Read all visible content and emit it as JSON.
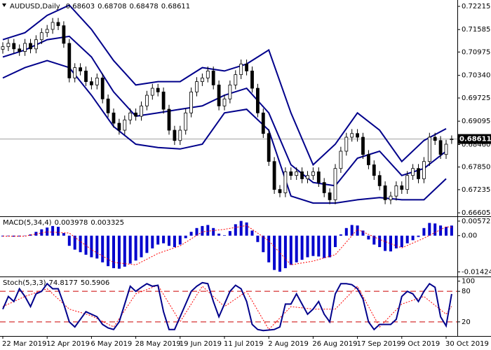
{
  "chart_data": [
    {
      "type": "candlestick",
      "title": "AUDUSD,Daily",
      "header_values": [
        0.68603,
        0.68708,
        0.68478,
        0.68611
      ],
      "open": [
        0.7105,
        0.7112,
        0.7121,
        0.7106,
        0.7099,
        0.7121,
        0.7106,
        0.7131,
        0.715,
        0.7159,
        0.7178,
        0.7169,
        0.7121,
        0.7027,
        0.7055,
        0.7046,
        0.7017,
        0.7008,
        0.7027,
        0.697,
        0.6932,
        0.6904,
        0.6885,
        0.6913,
        0.6932,
        0.6923,
        0.6951,
        0.698,
        0.6999,
        0.6989,
        0.6942,
        0.6885,
        0.6857,
        0.6885,
        0.6932,
        0.6989,
        0.7017,
        0.7027,
        0.7046,
        0.7008,
        0.6951,
        0.697,
        0.7008,
        0.7036,
        0.7065,
        0.7046,
        0.6999,
        0.6932,
        0.6876,
        0.68,
        0.6724,
        0.6715,
        0.6772,
        0.6762,
        0.6772,
        0.6753,
        0.6762,
        0.6772,
        0.6743,
        0.6715,
        0.6696,
        0.6781,
        0.6828,
        0.6866,
        0.6876,
        0.6866,
        0.6819,
        0.6791,
        0.6762,
        0.6734,
        0.6696,
        0.6706,
        0.6734,
        0.6724,
        0.6762,
        0.6781,
        0.6753,
        0.68,
        0.6866,
        0.6857,
        0.6819,
        0.68603
      ],
      "high": [
        0.7124,
        0.7133,
        0.7133,
        0.7118,
        0.7133,
        0.7133,
        0.7143,
        0.7162,
        0.7171,
        0.719,
        0.719,
        0.7181,
        0.7133,
        0.7067,
        0.7067,
        0.7058,
        0.7029,
        0.7039,
        0.7039,
        0.6982,
        0.6944,
        0.6916,
        0.6925,
        0.6944,
        0.6944,
        0.6963,
        0.6992,
        0.7011,
        0.7011,
        0.7001,
        0.6954,
        0.6897,
        0.6897,
        0.6944,
        0.7001,
        0.7029,
        0.7039,
        0.7058,
        0.7058,
        0.702,
        0.6982,
        0.702,
        0.7048,
        0.7077,
        0.7077,
        0.7058,
        0.7011,
        0.6944,
        0.6888,
        0.6812,
        0.6736,
        0.6784,
        0.6784,
        0.6784,
        0.6784,
        0.6774,
        0.6784,
        0.6784,
        0.6755,
        0.6727,
        0.6793,
        0.684,
        0.6878,
        0.6888,
        0.6888,
        0.6878,
        0.6831,
        0.6803,
        0.6774,
        0.6746,
        0.6718,
        0.6746,
        0.6746,
        0.6774,
        0.6793,
        0.6793,
        0.6812,
        0.6878,
        0.6878,
        0.6869,
        0.6859,
        0.68708
      ],
      "low": [
        0.7093,
        0.71,
        0.7094,
        0.7087,
        0.7087,
        0.7094,
        0.7094,
        0.7119,
        0.7138,
        0.7147,
        0.7157,
        0.7109,
        0.7015,
        0.7015,
        0.7034,
        0.7005,
        0.6996,
        0.6996,
        0.6958,
        0.692,
        0.6892,
        0.6873,
        0.6873,
        0.6901,
        0.6911,
        0.6911,
        0.6939,
        0.6968,
        0.6977,
        0.693,
        0.6873,
        0.6845,
        0.6845,
        0.6873,
        0.692,
        0.6977,
        0.7005,
        0.7015,
        0.6996,
        0.6939,
        0.6939,
        0.6958,
        0.6996,
        0.7024,
        0.7034,
        0.6987,
        0.692,
        0.6864,
        0.6788,
        0.6712,
        0.6703,
        0.6703,
        0.675,
        0.675,
        0.6741,
        0.6741,
        0.675,
        0.6731,
        0.6703,
        0.6684,
        0.6684,
        0.6769,
        0.6816,
        0.6854,
        0.6854,
        0.6807,
        0.6779,
        0.675,
        0.6722,
        0.6684,
        0.6684,
        0.6694,
        0.6712,
        0.6712,
        0.675,
        0.6741,
        0.6741,
        0.6788,
        0.6845,
        0.6807,
        0.6807,
        0.68478
      ],
      "close": [
        0.7112,
        0.7121,
        0.7106,
        0.7099,
        0.7121,
        0.7106,
        0.7131,
        0.715,
        0.7159,
        0.7178,
        0.7169,
        0.7121,
        0.7027,
        0.7055,
        0.7046,
        0.7017,
        0.7008,
        0.7027,
        0.697,
        0.6932,
        0.6904,
        0.6885,
        0.6913,
        0.6932,
        0.6923,
        0.6951,
        0.698,
        0.6999,
        0.6989,
        0.6942,
        0.6885,
        0.6857,
        0.6885,
        0.6932,
        0.6989,
        0.7017,
        0.7027,
        0.7046,
        0.7008,
        0.6951,
        0.697,
        0.7008,
        0.7036,
        0.7065,
        0.7046,
        0.6999,
        0.6932,
        0.6876,
        0.68,
        0.6724,
        0.6715,
        0.6772,
        0.6762,
        0.6772,
        0.6753,
        0.6762,
        0.6772,
        0.6743,
        0.6715,
        0.6696,
        0.6781,
        0.6828,
        0.6866,
        0.6876,
        0.6866,
        0.6819,
        0.6791,
        0.6762,
        0.6734,
        0.6696,
        0.6706,
        0.6734,
        0.6724,
        0.6762,
        0.6781,
        0.6753,
        0.68,
        0.6866,
        0.6857,
        0.6819,
        0.6847,
        0.68611
      ],
      "up_color": "#ffffff",
      "down_color": "#000000",
      "bands": {
        "x": [
          0,
          4,
          8,
          12,
          16,
          20,
          24,
          28,
          32,
          36,
          40,
          44,
          48,
          52,
          56,
          60,
          64,
          68,
          72,
          76,
          80
        ],
        "color": "#00008b",
        "upper": [
          0.7131,
          0.715,
          0.7197,
          0.7225,
          0.7159,
          0.7074,
          0.7008,
          0.7017,
          0.7017,
          0.7055,
          0.7046,
          0.7065,
          0.7103,
          0.6932,
          0.6791,
          0.6847,
          0.6932,
          0.6885,
          0.68,
          0.6857,
          0.6889
        ],
        "middle": [
          0.7084,
          0.7103,
          0.7131,
          0.714,
          0.7084,
          0.6989,
          0.6923,
          0.6932,
          0.6942,
          0.6951,
          0.698,
          0.6999,
          0.6932,
          0.6791,
          0.6743,
          0.6734,
          0.6809,
          0.6828,
          0.6762,
          0.6781,
          0.6828
        ],
        "lower": [
          0.7027,
          0.7055,
          0.7074,
          0.7055,
          0.698,
          0.6895,
          0.6847,
          0.6838,
          0.6834,
          0.6847,
          0.6932,
          0.6942,
          0.6885,
          0.6706,
          0.6687,
          0.6687,
          0.6696,
          0.6702,
          0.6696,
          0.6696,
          0.6753
        ]
      },
      "last_price": 0.68611,
      "ylim": [
        0.6653,
        0.7235
      ],
      "yticks": [
        0.72215,
        0.71585,
        0.70975,
        {
          "value": 0.7034,
          "label": "0.70340"
        },
        0.69725,
        0.69095,
        {
          "value": 0.6846,
          "label": "0.68460"
        },
        {
          "value": 0.6785,
          "label": "0.67850"
        },
        0.67235,
        0.66605
      ]
    },
    {
      "type": "bar",
      "title": "MACD(5,34,4)",
      "header_values": [
        0.003978,
        0.003325
      ],
      "color": "#0000cd",
      "values": [
        -0.0003,
        -0.0002,
        -0.0004,
        -0.0003,
        -0.0001,
        0.0005,
        0.0015,
        0.0025,
        0.0032,
        0.0038,
        0.0035,
        0.001,
        -0.004,
        -0.0055,
        -0.0065,
        -0.0075,
        -0.0085,
        -0.009,
        -0.0105,
        -0.012,
        -0.0128,
        -0.013,
        -0.0122,
        -0.011,
        -0.0098,
        -0.0085,
        -0.0068,
        -0.005,
        -0.0035,
        -0.003,
        -0.004,
        -0.0045,
        -0.0035,
        -0.001,
        0.0015,
        0.003,
        0.0038,
        0.0042,
        0.003,
        0.0008,
        0.0002,
        0.0018,
        0.0045,
        0.0058,
        0.0052,
        0.002,
        -0.0025,
        -0.0065,
        -0.0105,
        -0.0135,
        -0.0142,
        -0.0128,
        -0.0115,
        -0.0105,
        -0.0095,
        -0.0085,
        -0.008,
        -0.0082,
        -0.0088,
        -0.0085,
        -0.0045,
        0.0005,
        0.003,
        0.0042,
        0.004,
        0.002,
        -0.0015,
        -0.0035,
        -0.0045,
        -0.006,
        -0.0062,
        -0.005,
        -0.0045,
        -0.003,
        -0.0018,
        -0.0005,
        0.003,
        0.005,
        0.0048,
        0.004,
        0.0035,
        0.003978
      ],
      "signal": {
        "x": [
          0,
          4,
          8,
          12,
          16,
          20,
          24,
          28,
          32,
          36,
          40,
          44,
          48,
          52,
          56,
          60,
          64,
          68,
          72,
          76,
          80,
          81
        ],
        "color": "#ff0000",
        "values": [
          -0.0002,
          -0.0002,
          0.0015,
          0.001,
          -0.0055,
          -0.0105,
          -0.0115,
          -0.007,
          -0.004,
          0.0015,
          0.0025,
          0.004,
          -0.002,
          -0.0115,
          -0.01,
          -0.0075,
          0.0025,
          -0.0015,
          -0.0048,
          -0.001,
          0.0035,
          0.003325
        ]
      },
      "ylim": [
        -0.0158,
        0.0068
      ],
      "yticks": [
        0.005727,
        {
          "value": 0,
          "label": "0.00"
        },
        -0.014242
      ]
    },
    {
      "type": "line",
      "title": "Stoch(5,3,3)",
      "header_values": [
        74.8177,
        50.5906
      ],
      "series": [
        {
          "color": "#00008b",
          "values": [
            45,
            70,
            60,
            85,
            70,
            50,
            75,
            80,
            95,
            85,
            85,
            55,
            20,
            10,
            25,
            40,
            35,
            30,
            15,
            8,
            5,
            20,
            55,
            90,
            80,
            88,
            95,
            90,
            92,
            40,
            5,
            5,
            30,
            55,
            80,
            90,
            97,
            95,
            60,
            30,
            55,
            80,
            92,
            85,
            60,
            15,
            5,
            3,
            4,
            5,
            10,
            55,
            55,
            75,
            55,
            35,
            45,
            60,
            35,
            20,
            75,
            95,
            95,
            93,
            85,
            65,
            20,
            5,
            15,
            15,
            15,
            25,
            70,
            80,
            75,
            60,
            80,
            95,
            88,
            30,
            12,
            74.8177
          ]
        },
        {
          "color": "#ff0000",
          "x": [
            0,
            4,
            8,
            12,
            16,
            20,
            24,
            28,
            32,
            36,
            40,
            44,
            48,
            52,
            56,
            60,
            64,
            68,
            72,
            76,
            80,
            81
          ],
          "values": [
            50,
            70,
            85,
            45,
            32,
            10,
            75,
            92,
            20,
            90,
            50,
            80,
            5,
            50,
            45,
            45,
            90,
            10,
            55,
            70,
            35,
            50.5906
          ]
        }
      ],
      "levels": [
        80,
        20
      ],
      "level_color": "#cc0000",
      "ylim": [
        -5,
        105
      ],
      "yticks": [
        100,
        80,
        20
      ],
      "xticks": [
        {
          "value": 0,
          "label": "22 Mar 2019"
        },
        {
          "value": 8,
          "label": "12 Apr 2019"
        },
        {
          "value": 16,
          "label": "6 May 2019"
        },
        {
          "value": 24,
          "label": "28 May 2019"
        },
        {
          "value": 32,
          "label": "19 Jun 2019"
        },
        {
          "value": 40,
          "label": "11 Jul 2019"
        },
        {
          "value": 48,
          "label": "2 Aug 2019"
        },
        {
          "value": 56,
          "label": "26 Aug 2019"
        },
        {
          "value": 64,
          "label": "17 Sep 2019"
        },
        {
          "value": 72,
          "label": "9 Oct 2019"
        },
        {
          "value": 80,
          "label": "30 Oct 2019"
        }
      ]
    }
  ]
}
